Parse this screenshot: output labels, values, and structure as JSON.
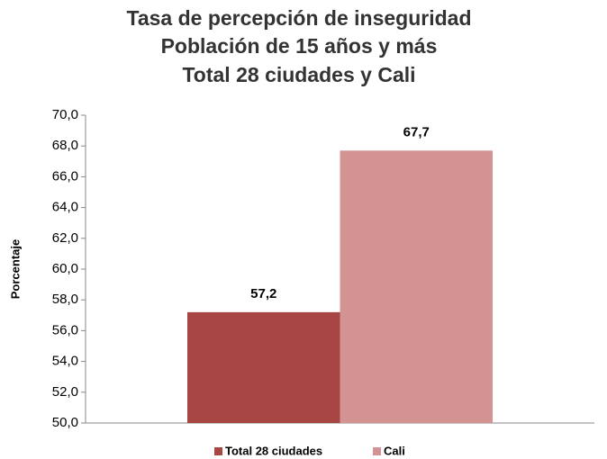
{
  "chart_data": {
    "type": "bar",
    "title": [
      "Tasa de percepción de inseguridad",
      "Población de 15 años y más",
      "Total 28 ciudades y Cali"
    ],
    "y_label": "Porcentaje",
    "categories": [
      null
    ],
    "series": [
      {
        "name": "Total 28 ciudades",
        "color": "#a84644",
        "values": [
          57.2
        ],
        "value_labels": [
          "57,2"
        ]
      },
      {
        "name": "Cali",
        "color": "#d39392",
        "values": [
          67.7
        ],
        "value_labels": [
          "67,7"
        ]
      }
    ],
    "ylim": [
      50,
      70
    ],
    "yticks": [
      {
        "value": 50,
        "label": "50,0"
      },
      {
        "value": 52,
        "label": "52,0"
      },
      {
        "value": 54,
        "label": "54,0"
      },
      {
        "value": 56,
        "label": "56,0"
      },
      {
        "value": 58,
        "label": "58,0"
      },
      {
        "value": 60,
        "label": "60,0"
      },
      {
        "value": 62,
        "label": "62,0"
      },
      {
        "value": 64,
        "label": "64,0"
      },
      {
        "value": 66,
        "label": "66,0"
      },
      {
        "value": 68,
        "label": "68,0"
      },
      {
        "value": 70,
        "label": "70,0"
      }
    ],
    "grid": false,
    "legend": "bottom"
  }
}
